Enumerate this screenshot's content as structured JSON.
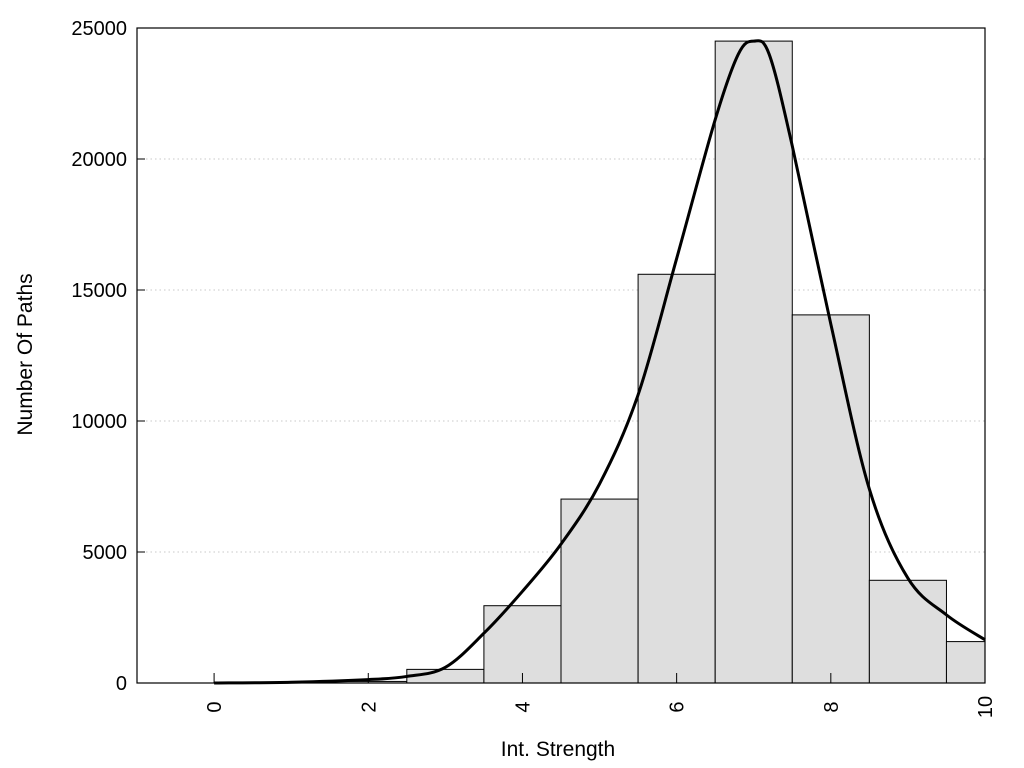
{
  "chart_data": {
    "type": "bar",
    "title": "",
    "xlabel": "Int. Strength",
    "ylabel": "Number Of Paths",
    "xlim": [
      -1,
      10
    ],
    "ylim": [
      0,
      25000
    ],
    "grid": "horizontal dotted",
    "x_ticks": [
      "0",
      "2",
      "4",
      "6",
      "8",
      "10"
    ],
    "x_tick_values": [
      0,
      2,
      4,
      6,
      8,
      10
    ],
    "y_ticks": [
      "0",
      "5000",
      "10000",
      "15000",
      "20000",
      "25000"
    ],
    "y_tick_values": [
      0,
      5000,
      10000,
      15000,
      20000,
      25000
    ],
    "bar_color": "#dedede",
    "bars": [
      {
        "x_start": 0,
        "x_end": 0.5,
        "value": 20
      },
      {
        "x_start": 0.5,
        "x_end": 1.5,
        "value": 30
      },
      {
        "x_start": 1.5,
        "x_end": 2.5,
        "value": 60
      },
      {
        "x_start": 2.5,
        "x_end": 3.5,
        "value": 520
      },
      {
        "x_start": 3.5,
        "x_end": 4.5,
        "value": 2950
      },
      {
        "x_start": 4.5,
        "x_end": 5.5,
        "value": 7020
      },
      {
        "x_start": 5.5,
        "x_end": 6.5,
        "value": 15600
      },
      {
        "x_start": 6.5,
        "x_end": 7.5,
        "value": 24500
      },
      {
        "x_start": 7.5,
        "x_end": 8.5,
        "value": 14050
      },
      {
        "x_start": 8.5,
        "x_end": 9.5,
        "value": 3920
      },
      {
        "x_start": 9.5,
        "x_end": 10,
        "value": 1580
      }
    ],
    "curve": {
      "x": [
        0,
        1,
        2,
        2.5,
        3,
        3.5,
        4,
        4.5,
        5,
        5.5,
        6,
        6.5,
        6.8,
        7,
        7.2,
        7.5,
        8,
        8.5,
        9,
        9.5,
        10
      ],
      "y": [
        0,
        30,
        130,
        250,
        600,
        1900,
        3500,
        5300,
        7600,
        11000,
        16200,
        21500,
        24000,
        24500,
        24000,
        20500,
        13700,
        7400,
        4000,
        2600,
        1650
      ]
    }
  }
}
